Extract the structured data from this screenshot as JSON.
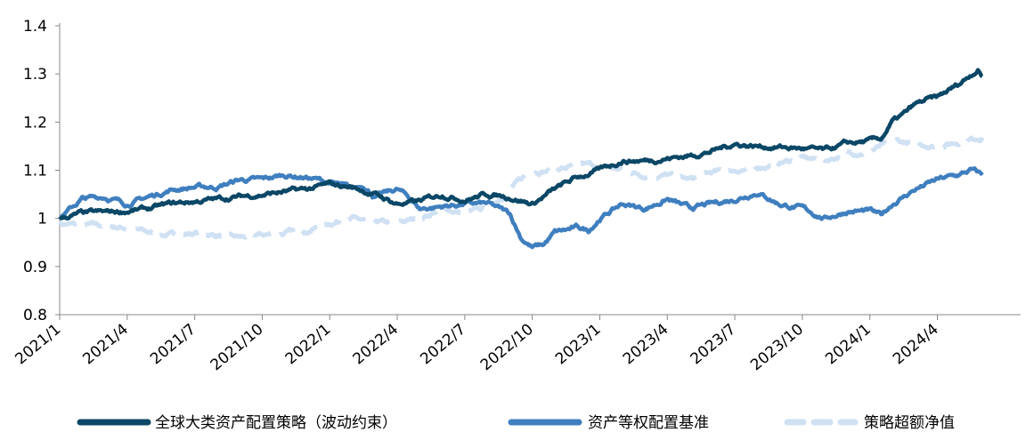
{
  "chart_data": {
    "type": "line",
    "title": "",
    "xlabel": "",
    "ylabel": "",
    "ylim": [
      0.8,
      1.4
    ],
    "yticks": [
      "0.8",
      "0.9",
      "1",
      "1.1",
      "1.2",
      "1.3",
      "1.4"
    ],
    "xlim": [
      0,
      42.7
    ],
    "xticks": [
      {
        "label": "2021/1",
        "t": 0
      },
      {
        "label": "2021/4",
        "t": 3
      },
      {
        "label": "2021/7",
        "t": 6
      },
      {
        "label": "2021/10",
        "t": 9
      },
      {
        "label": "2022/1",
        "t": 12
      },
      {
        "label": "2022/4",
        "t": 15
      },
      {
        "label": "2022/7",
        "t": 18
      },
      {
        "label": "2022/10",
        "t": 21
      },
      {
        "label": "2023/1",
        "t": 24
      },
      {
        "label": "2023/4",
        "t": 27
      },
      {
        "label": "2023/7",
        "t": 30
      },
      {
        "label": "2023/10",
        "t": 33
      },
      {
        "label": "2024/1",
        "t": 36
      },
      {
        "label": "2024/4",
        "t": 39
      }
    ],
    "grid": false,
    "legend_position": "bottom",
    "series": [
      {
        "name": "全球大类资产配置策略（波动约束）",
        "color": "#0b4766",
        "style": "solid",
        "points": [
          [
            0,
            1.0
          ],
          [
            1,
            1.01
          ],
          [
            2,
            1.012
          ],
          [
            3,
            1.015
          ],
          [
            4,
            1.02
          ],
          [
            5,
            1.03
          ],
          [
            6,
            1.035
          ],
          [
            7,
            1.04
          ],
          [
            8,
            1.045
          ],
          [
            9,
            1.05
          ],
          [
            10,
            1.055
          ],
          [
            11,
            1.06
          ],
          [
            12,
            1.07
          ],
          [
            13,
            1.065
          ],
          [
            14,
            1.05
          ],
          [
            15,
            1.03
          ],
          [
            16,
            1.035
          ],
          [
            17,
            1.05
          ],
          [
            18,
            1.04
          ],
          [
            19,
            1.05
          ],
          [
            20,
            1.045
          ],
          [
            21,
            1.03
          ],
          [
            22,
            1.06
          ],
          [
            23,
            1.085
          ],
          [
            24,
            1.1
          ],
          [
            25,
            1.12
          ],
          [
            26,
            1.12
          ],
          [
            27,
            1.125
          ],
          [
            28,
            1.13
          ],
          [
            29,
            1.14
          ],
          [
            30,
            1.155
          ],
          [
            31,
            1.15
          ],
          [
            32,
            1.148
          ],
          [
            33,
            1.145
          ],
          [
            34,
            1.14
          ],
          [
            35,
            1.155
          ],
          [
            36,
            1.16
          ],
          [
            36.5,
            1.165
          ],
          [
            37,
            1.2
          ],
          [
            37.5,
            1.215
          ],
          [
            38,
            1.235
          ],
          [
            38.5,
            1.245
          ],
          [
            39,
            1.25
          ],
          [
            39.5,
            1.265
          ],
          [
            40,
            1.28
          ],
          [
            40.5,
            1.3
          ],
          [
            40.8,
            1.31
          ],
          [
            41,
            1.295
          ]
        ]
      },
      {
        "name": "资产等权配置基准",
        "color": "#3f7fbf",
        "style": "solid",
        "points": [
          [
            0,
            1.0
          ],
          [
            0.5,
            1.02
          ],
          [
            1,
            1.04
          ],
          [
            2,
            1.045
          ],
          [
            3,
            1.03
          ],
          [
            4,
            1.045
          ],
          [
            5,
            1.06
          ],
          [
            6,
            1.065
          ],
          [
            7,
            1.065
          ],
          [
            8,
            1.08
          ],
          [
            9,
            1.08
          ],
          [
            10,
            1.09
          ],
          [
            11,
            1.085
          ],
          [
            12,
            1.075
          ],
          [
            13,
            1.06
          ],
          [
            13.5,
            1.07
          ],
          [
            14,
            1.045
          ],
          [
            15,
            1.06
          ],
          [
            15.5,
            1.045
          ],
          [
            16,
            1.02
          ],
          [
            17,
            1.025
          ],
          [
            18,
            1.03
          ],
          [
            19,
            1.03
          ],
          [
            19.5,
            1.02
          ],
          [
            20,
            1.01
          ],
          [
            20.5,
            0.96
          ],
          [
            21,
            0.94
          ],
          [
            21.5,
            0.945
          ],
          [
            22,
            0.97
          ],
          [
            23,
            0.98
          ],
          [
            23.5,
            0.975
          ],
          [
            24,
            1.0
          ],
          [
            25,
            1.03
          ],
          [
            26,
            1.02
          ],
          [
            27,
            1.04
          ],
          [
            28,
            1.02
          ],
          [
            29,
            1.03
          ],
          [
            30,
            1.04
          ],
          [
            31,
            1.055
          ],
          [
            32,
            1.03
          ],
          [
            33,
            1.02
          ],
          [
            34,
            1.0
          ],
          [
            35,
            1.015
          ],
          [
            36,
            1.015
          ],
          [
            36.5,
            1.005
          ],
          [
            37,
            1.03
          ],
          [
            38,
            1.06
          ],
          [
            39,
            1.08
          ],
          [
            40,
            1.09
          ],
          [
            40.5,
            1.1
          ],
          [
            41,
            1.09
          ]
        ]
      },
      {
        "name": "策略超额净值",
        "color": "#cfe1f3",
        "style": "dashed",
        "points": [
          [
            0,
            0.99
          ],
          [
            1,
            0.985
          ],
          [
            2,
            0.985
          ],
          [
            3,
            0.98
          ],
          [
            4,
            0.97
          ],
          [
            5,
            0.965
          ],
          [
            6,
            0.97
          ],
          [
            7,
            0.965
          ],
          [
            8,
            0.96
          ],
          [
            9,
            0.965
          ],
          [
            10,
            0.97
          ],
          [
            11,
            0.975
          ],
          [
            12,
            0.99
          ],
          [
            13,
            1.0
          ],
          [
            14,
            0.99
          ],
          [
            15,
            0.99
          ],
          [
            16,
            1.0
          ],
          [
            17,
            1.02
          ],
          [
            18,
            1.01
          ],
          [
            19,
            1.02
          ],
          [
            20,
            1.06
          ],
          [
            21,
            1.1
          ],
          [
            22,
            1.1
          ],
          [
            23,
            1.11
          ],
          [
            24,
            1.11
          ],
          [
            25,
            1.1
          ],
          [
            26,
            1.09
          ],
          [
            27,
            1.09
          ],
          [
            28,
            1.08
          ],
          [
            29,
            1.095
          ],
          [
            30,
            1.1
          ],
          [
            31,
            1.105
          ],
          [
            32,
            1.115
          ],
          [
            33,
            1.125
          ],
          [
            34,
            1.12
          ],
          [
            35,
            1.135
          ],
          [
            36,
            1.14
          ],
          [
            36.5,
            1.15
          ],
          [
            37,
            1.16
          ],
          [
            38,
            1.155
          ],
          [
            39,
            1.15
          ],
          [
            40,
            1.16
          ],
          [
            41,
            1.17
          ]
        ]
      }
    ]
  }
}
